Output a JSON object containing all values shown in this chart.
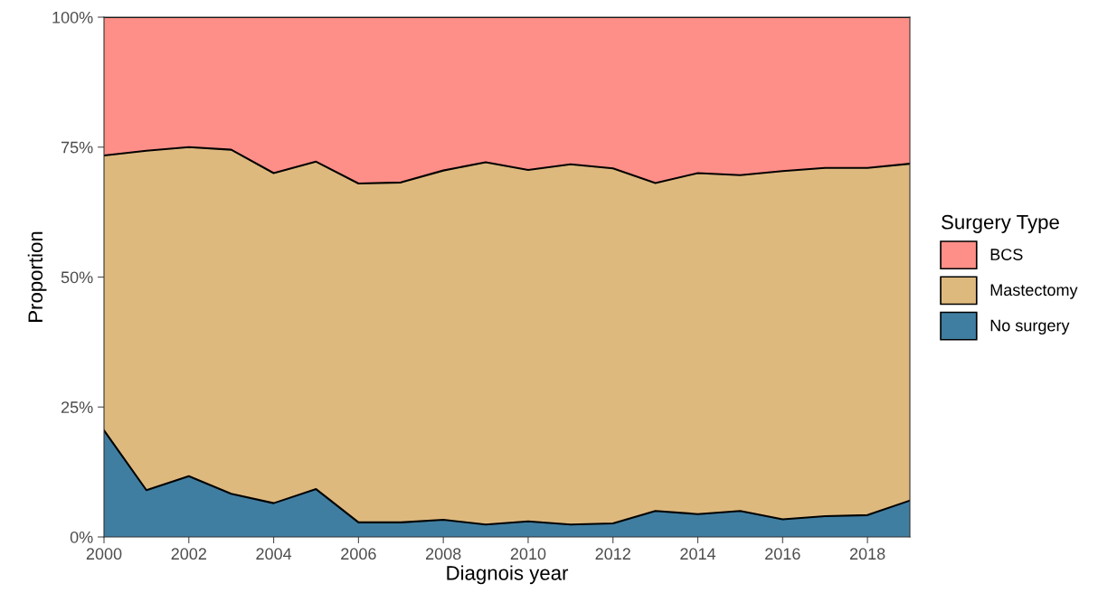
{
  "chart_data": {
    "type": "area",
    "stacked": true,
    "xlabel": "Diagnois year",
    "ylabel": "Proportion",
    "legend_title": "Surgery Type",
    "legend": "right",
    "x": [
      2000,
      2001,
      2002,
      2003,
      2004,
      2005,
      2006,
      2007,
      2008,
      2009,
      2010,
      2011,
      2012,
      2013,
      2014,
      2015,
      2016,
      2017,
      2018,
      2019
    ],
    "series": [
      {
        "name": "No surgery",
        "color": "#3f7ea1",
        "values": [
          20.5,
          9.0,
          11.7,
          8.3,
          6.5,
          9.2,
          2.8,
          2.8,
          3.3,
          2.4,
          3.0,
          2.4,
          2.6,
          5.0,
          4.4,
          5.0,
          3.4,
          4.0,
          4.2,
          7.0
        ]
      },
      {
        "name": "Mastectomy",
        "color": "#deb97e",
        "values": [
          52.9,
          65.3,
          63.3,
          66.2,
          63.5,
          63.0,
          65.2,
          65.4,
          67.2,
          69.7,
          67.6,
          69.3,
          68.3,
          63.1,
          65.6,
          64.6,
          67.0,
          67.0,
          66.8,
          64.8
        ]
      },
      {
        "name": "BCS",
        "color": "#fe8f88",
        "values": [
          26.6,
          25.7,
          25.0,
          25.5,
          30.0,
          27.8,
          32.0,
          31.8,
          29.5,
          27.9,
          29.4,
          28.3,
          29.1,
          31.9,
          30.0,
          30.4,
          29.6,
          29.0,
          29.0,
          28.2
        ]
      }
    ],
    "xlim": [
      2000,
      2019
    ],
    "xticks": [
      2000,
      2002,
      2004,
      2006,
      2008,
      2010,
      2012,
      2014,
      2016,
      2018
    ],
    "ylim": [
      0,
      100
    ],
    "yticks": [
      {
        "value": 0,
        "label": "0%"
      },
      {
        "value": 25,
        "label": "25%"
      },
      {
        "value": 50,
        "label": "50%"
      },
      {
        "value": 75,
        "label": "75%"
      },
      {
        "value": 100,
        "label": "100%"
      }
    ],
    "grid": false
  }
}
